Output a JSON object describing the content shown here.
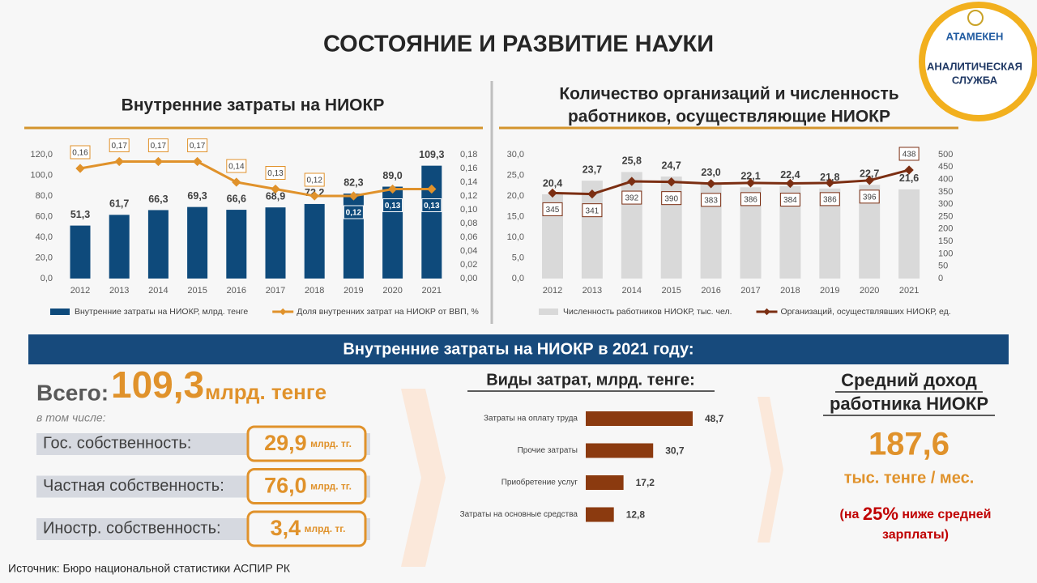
{
  "title": "СОСТОЯНИЕ И РАЗВИТИЕ НАУКИ",
  "logo": {
    "name": "АТАМЕКЕН",
    "service": [
      "АНАЛИТИЧЕСКАЯ",
      "СЛУЖБА"
    ]
  },
  "banner": "Внутренние затраты на НИОКР в 2021 году:",
  "total": {
    "label": "Всего:",
    "value": "109,3",
    "unit": "млрд. тенге",
    "note": "в том числе:"
  },
  "ownership": [
    {
      "label": "Гос. собственность:",
      "value": "29,9",
      "unit": "млрд. тг."
    },
    {
      "label": "Частная собственность:",
      "value": "76,0",
      "unit": "млрд. тг."
    },
    {
      "label": "Иностр. собственность:",
      "value": "3,4",
      "unit": "млрд. тг."
    }
  ],
  "income": {
    "title": [
      "Средний доход",
      "работника НИОКР"
    ],
    "value": "187,6",
    "unit": "тыс. тенге / мес.",
    "note": {
      "pre": "(на",
      "percent": "25%",
      "post": "ниже средней",
      "end": "зарплаты)"
    }
  },
  "source": "Источник:  Бюро национальной  статистики  АСПИР РК",
  "chart_data": [
    {
      "type": "bar",
      "title": [
        "Внутренние затраты на НИОКР"
      ],
      "categories": [
        "2012",
        "2013",
        "2014",
        "2015",
        "2016",
        "2017",
        "2018",
        "2019",
        "2020",
        "2021"
      ],
      "series": [
        {
          "name": "Внутренние затраты на НИОКР, млрд. тенге",
          "type": "bar",
          "color": "#0e4a7b",
          "values": [
            51.3,
            61.7,
            66.3,
            69.3,
            66.6,
            68.9,
            72.2,
            82.3,
            89.0,
            109.3
          ],
          "value_labels": [
            "51,3",
            "61,7",
            "66,3",
            "69,3",
            "66,6",
            "68,9",
            "72,2",
            "82,3",
            "89,0",
            "109,3"
          ]
        },
        {
          "name": "Доля внутренних затрат на НИОКР от ВВП, %",
          "type": "line",
          "axis": "y2",
          "color": "#e0922b",
          "values": [
            0.16,
            0.17,
            0.17,
            0.17,
            0.14,
            0.13,
            0.12,
            0.12,
            0.13,
            0.13
          ],
          "value_labels": [
            "0,16",
            "0,17",
            "0,17",
            "0,17",
            "0,14",
            "0,13",
            "0,12",
            "0,12",
            "0,13",
            "0,13"
          ]
        }
      ],
      "ylim": [
        0,
        120
      ],
      "yticks": [
        {
          "value": 0,
          "label": "0,0"
        },
        {
          "value": 20,
          "label": "20,0"
        },
        {
          "value": 40,
          "label": "40,0"
        },
        {
          "value": 60,
          "label": "60,0"
        },
        {
          "value": 80,
          "label": "80,0"
        },
        {
          "value": 100,
          "label": "100,0"
        },
        {
          "value": 120,
          "label": "120,0"
        }
      ],
      "y2lim": [
        0,
        0.18
      ],
      "y2ticks": [
        {
          "value": 0,
          "label": "0,00"
        },
        {
          "value": 0.02,
          "label": "0,02"
        },
        {
          "value": 0.04,
          "label": "0,04"
        },
        {
          "value": 0.06,
          "label": "0,06"
        },
        {
          "value": 0.08,
          "label": "0,08"
        },
        {
          "value": 0.1,
          "label": "0,10"
        },
        {
          "value": 0.12,
          "label": "0,12"
        },
        {
          "value": 0.14,
          "label": "0,14"
        },
        {
          "value": 0.16,
          "label": "0,16"
        },
        {
          "value": 0.18,
          "label": "0,18"
        }
      ],
      "grid": false,
      "legend": "bottom"
    },
    {
      "type": "bar",
      "title": [
        "Количество организаций и численность",
        "работников, осуществляющие НИОКР"
      ],
      "categories": [
        "2012",
        "2013",
        "2014",
        "2015",
        "2016",
        "2017",
        "2018",
        "2019",
        "2020",
        "2021"
      ],
      "series": [
        {
          "name": "Численность работников НИОКР, тыс. чел.",
          "type": "bar",
          "color": "#d9d9d9",
          "values": [
            20.4,
            23.7,
            25.8,
            24.7,
            23.0,
            22.1,
            22.4,
            21.8,
            22.7,
            21.6
          ],
          "value_labels": [
            "20,4",
            "23,7",
            "25,8",
            "24,7",
            "23,0",
            "22,1",
            "22,4",
            "21,8",
            "22,7",
            "21,6"
          ]
        },
        {
          "name": "Организаций, осуществлявших НИОКР, ед.",
          "type": "line",
          "axis": "y2",
          "color": "#7b2e12",
          "values": [
            345,
            341,
            392,
            390,
            383,
            386,
            384,
            386,
            396,
            438
          ]
        }
      ],
      "ylim": [
        0,
        30
      ],
      "yticks": [
        {
          "value": 0,
          "label": "0,0"
        },
        {
          "value": 5,
          "label": "5,0"
        },
        {
          "value": 10,
          "label": "10,0"
        },
        {
          "value": 15,
          "label": "15,0"
        },
        {
          "value": 20,
          "label": "20,0"
        },
        {
          "value": 25,
          "label": "25,0"
        },
        {
          "value": 30,
          "label": "30,0"
        }
      ],
      "y2lim": [
        0,
        500
      ],
      "y2ticks": [
        0,
        50,
        100,
        150,
        200,
        250,
        300,
        350,
        400,
        450,
        500
      ],
      "grid": false,
      "legend": "bottom"
    },
    {
      "type": "hbar",
      "title": "Виды затрат,  млрд. тенге:",
      "categories": [
        "Затраты на оплату труда",
        "Прочие затраты",
        "Приобретение услуг",
        "Затраты на основные  средства"
      ],
      "values": [
        48.7,
        30.7,
        17.2,
        12.8
      ],
      "value_labels": [
        "48,7",
        "30,7",
        "17,2",
        "12,8"
      ],
      "color": "#8b3a0f"
    }
  ]
}
